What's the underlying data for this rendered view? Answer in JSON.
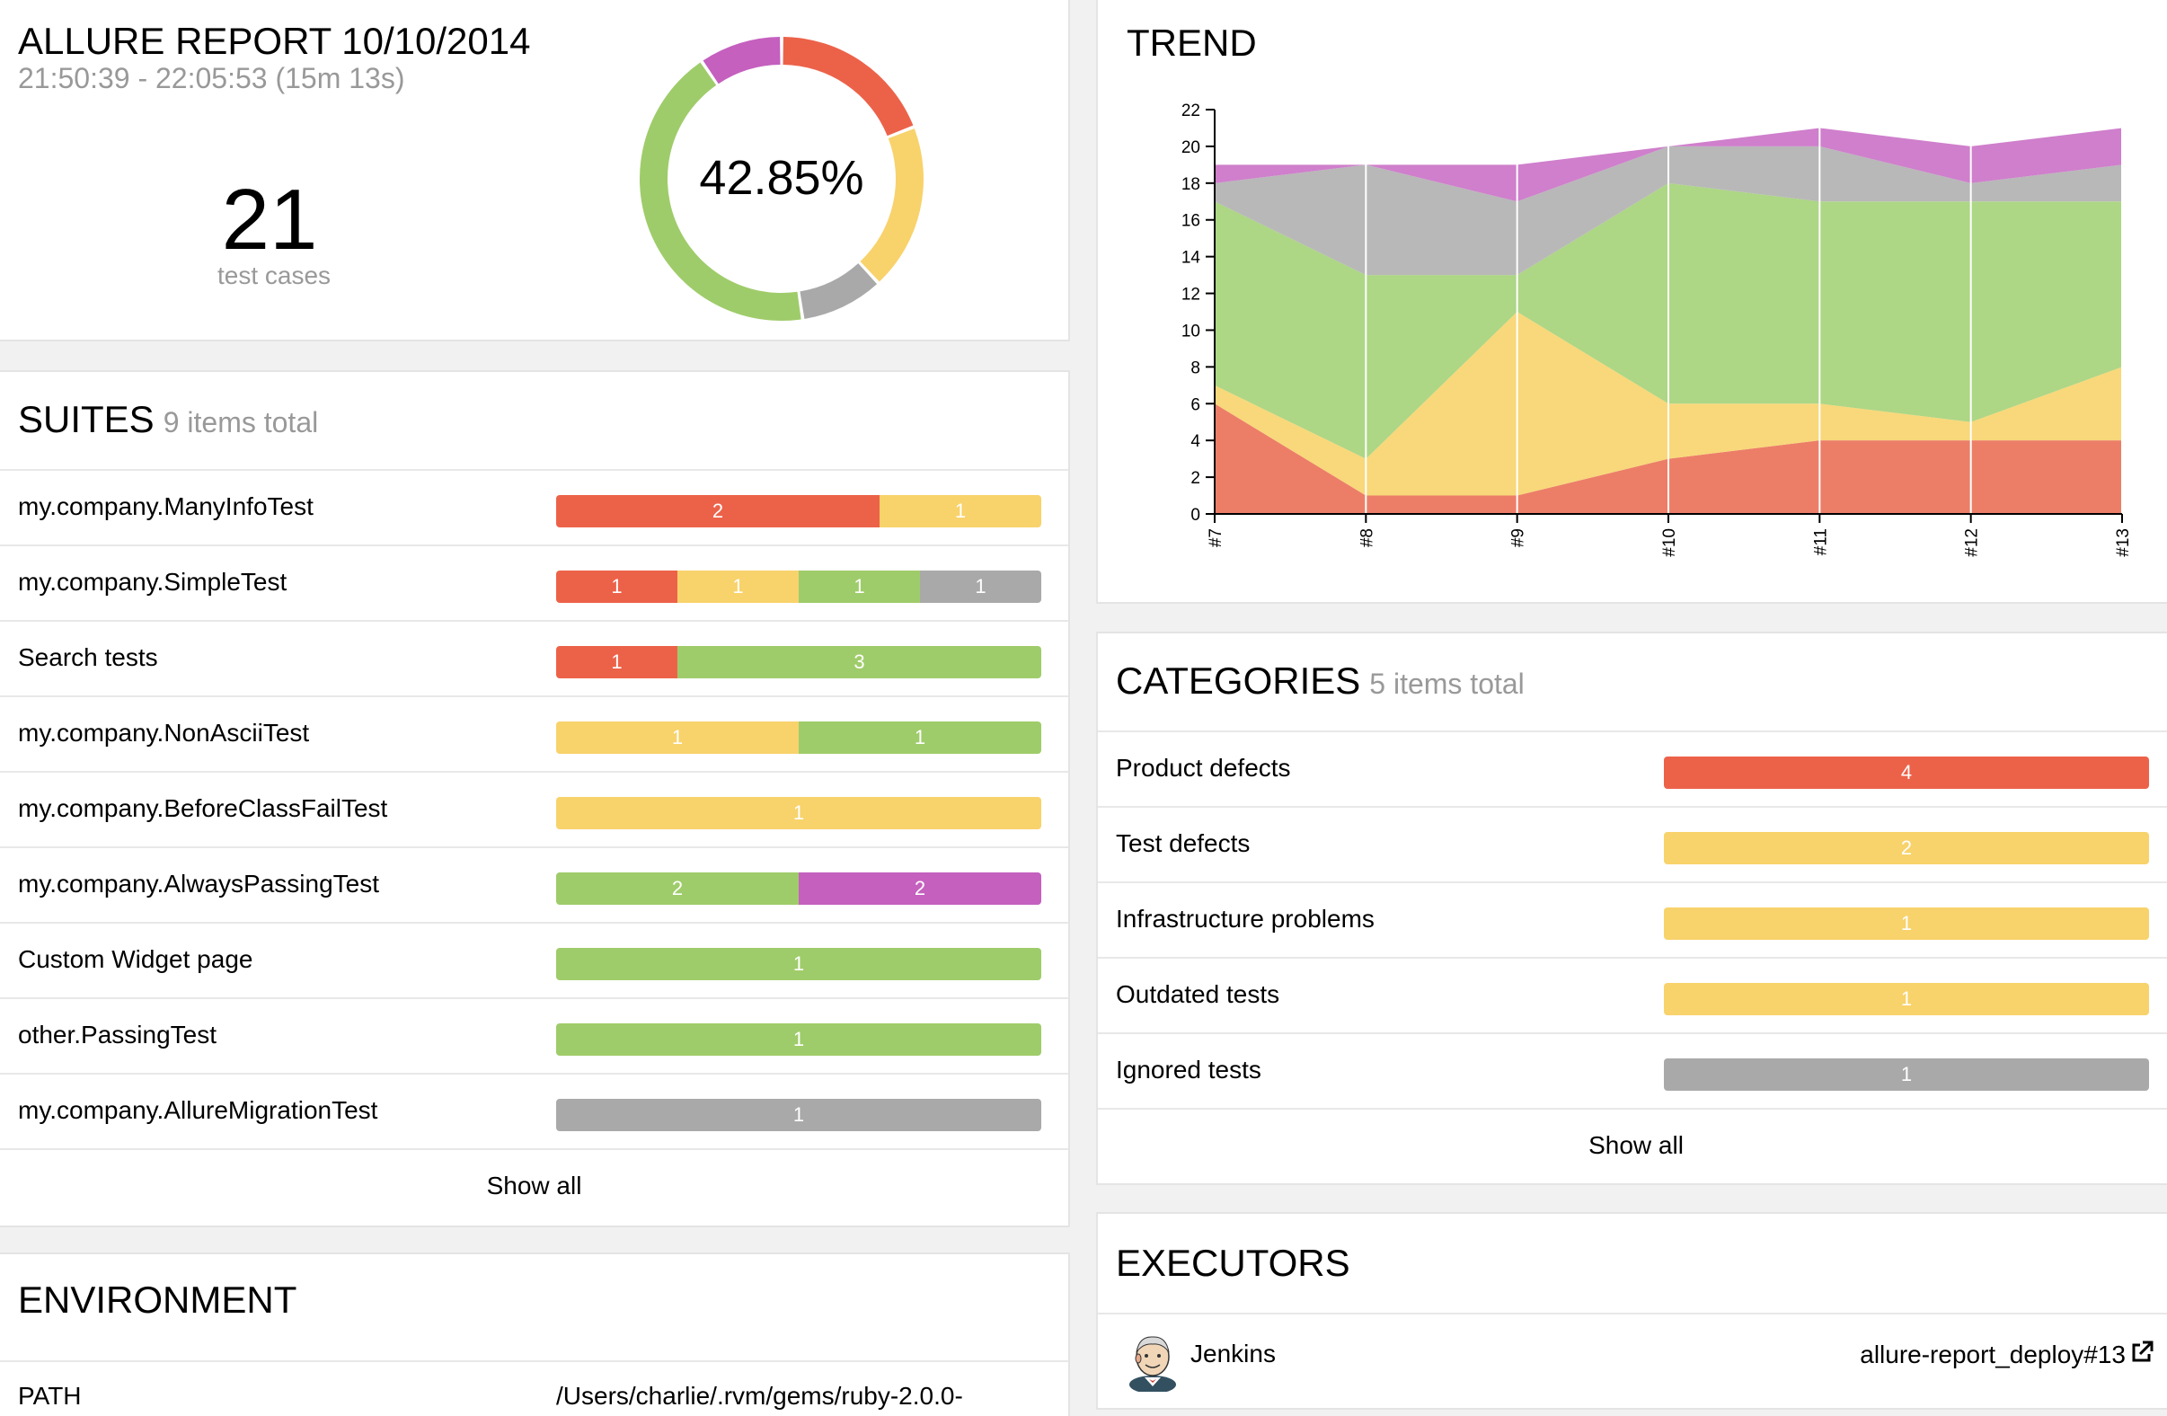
{
  "summary": {
    "title": "ALLURE REPORT 10/10/2014",
    "time": "21:50:39 - 22:05:53 (15m 13s)",
    "count": "21",
    "count_label": "test cases",
    "percent": "42.85%",
    "donut": [
      {
        "status": "failed",
        "color": "#ec6249",
        "value": 4
      },
      {
        "status": "broken",
        "color": "#f8d26b",
        "value": 4
      },
      {
        "status": "skipped",
        "color": "#a9a9a9",
        "value": 2
      },
      {
        "status": "passed",
        "color": "#9fcc6a",
        "value": 9
      },
      {
        "status": "unknown",
        "color": "#c560bf",
        "value": 2
      }
    ]
  },
  "suites": {
    "title": "SUITES",
    "subtitle": "9 items total",
    "show_all": "Show all",
    "items": [
      {
        "name": "my.company.ManyInfoTest",
        "segments": [
          {
            "status": "red",
            "count": 2
          },
          {
            "status": "yellow",
            "count": 1
          }
        ]
      },
      {
        "name": "my.company.SimpleTest",
        "segments": [
          {
            "status": "red",
            "count": 1
          },
          {
            "status": "yellow",
            "count": 1
          },
          {
            "status": "green",
            "count": 1
          },
          {
            "status": "gray",
            "count": 1
          }
        ]
      },
      {
        "name": "Search tests",
        "segments": [
          {
            "status": "red",
            "count": 1
          },
          {
            "status": "green",
            "count": 3
          }
        ]
      },
      {
        "name": "my.company.NonAsciiTest",
        "segments": [
          {
            "status": "yellow",
            "count": 1
          },
          {
            "status": "green",
            "count": 1
          }
        ]
      },
      {
        "name": "my.company.BeforeClassFailTest",
        "segments": [
          {
            "status": "yellow",
            "count": 1
          }
        ]
      },
      {
        "name": "my.company.AlwaysPassingTest",
        "segments": [
          {
            "status": "green",
            "count": 2
          },
          {
            "status": "purple",
            "count": 2
          }
        ]
      },
      {
        "name": "Custom Widget page",
        "segments": [
          {
            "status": "green",
            "count": 1
          }
        ]
      },
      {
        "name": "other.PassingTest",
        "segments": [
          {
            "status": "green",
            "count": 1
          }
        ]
      },
      {
        "name": "my.company.AllureMigrationTest",
        "segments": [
          {
            "status": "gray",
            "count": 1
          }
        ]
      }
    ]
  },
  "environment": {
    "title": "ENVIRONMENT",
    "rows": [
      {
        "key": "PATH",
        "value": "/Users/charlie/.rvm/gems/ruby-2.0.0-"
      }
    ]
  },
  "trend": {
    "title": "TREND"
  },
  "chart_data": {
    "type": "area",
    "title": "TREND",
    "x": [
      "#7",
      "#8",
      "#9",
      "#10",
      "#11",
      "#12",
      "#13"
    ],
    "ylim": [
      0,
      22
    ],
    "yticks": [
      0,
      2,
      4,
      6,
      8,
      10,
      12,
      14,
      16,
      18,
      20,
      22
    ],
    "stacked": true,
    "grid": "vertical",
    "series": [
      {
        "status": "failed",
        "color": "#ec7e68",
        "values": [
          6,
          1,
          1,
          3,
          4,
          4,
          4
        ]
      },
      {
        "status": "broken",
        "color": "#f8d87a",
        "values": [
          1,
          2,
          10,
          3,
          2,
          1,
          4
        ]
      },
      {
        "status": "passed",
        "color": "#add685",
        "values": [
          10,
          10,
          2,
          12,
          11,
          12,
          9
        ]
      },
      {
        "status": "skipped",
        "color": "#b8b8b8",
        "values": [
          1,
          6,
          4,
          2,
          3,
          1,
          2
        ]
      },
      {
        "status": "unknown",
        "color": "#cf7fcc",
        "values": [
          1,
          0,
          2,
          0,
          1,
          2,
          2
        ]
      }
    ]
  },
  "categories": {
    "title": "CATEGORIES",
    "subtitle": "5 items total",
    "show_all": "Show all",
    "items": [
      {
        "name": "Product defects",
        "segments": [
          {
            "status": "red",
            "count": 4
          }
        ]
      },
      {
        "name": "Test defects",
        "segments": [
          {
            "status": "yellow",
            "count": 2
          }
        ]
      },
      {
        "name": "Infrastructure problems",
        "segments": [
          {
            "status": "yellow",
            "count": 1
          }
        ]
      },
      {
        "name": "Outdated tests",
        "segments": [
          {
            "status": "yellow",
            "count": 1
          }
        ]
      },
      {
        "name": "Ignored tests",
        "segments": [
          {
            "status": "gray",
            "count": 1
          }
        ]
      }
    ]
  },
  "executors": {
    "title": "EXECUTORS",
    "items": [
      {
        "name": "Jenkins",
        "link": "allure-report_deploy#13",
        "avatar": "jenkins-avatar-icon",
        "link_icon": "external-link-icon"
      }
    ]
  }
}
